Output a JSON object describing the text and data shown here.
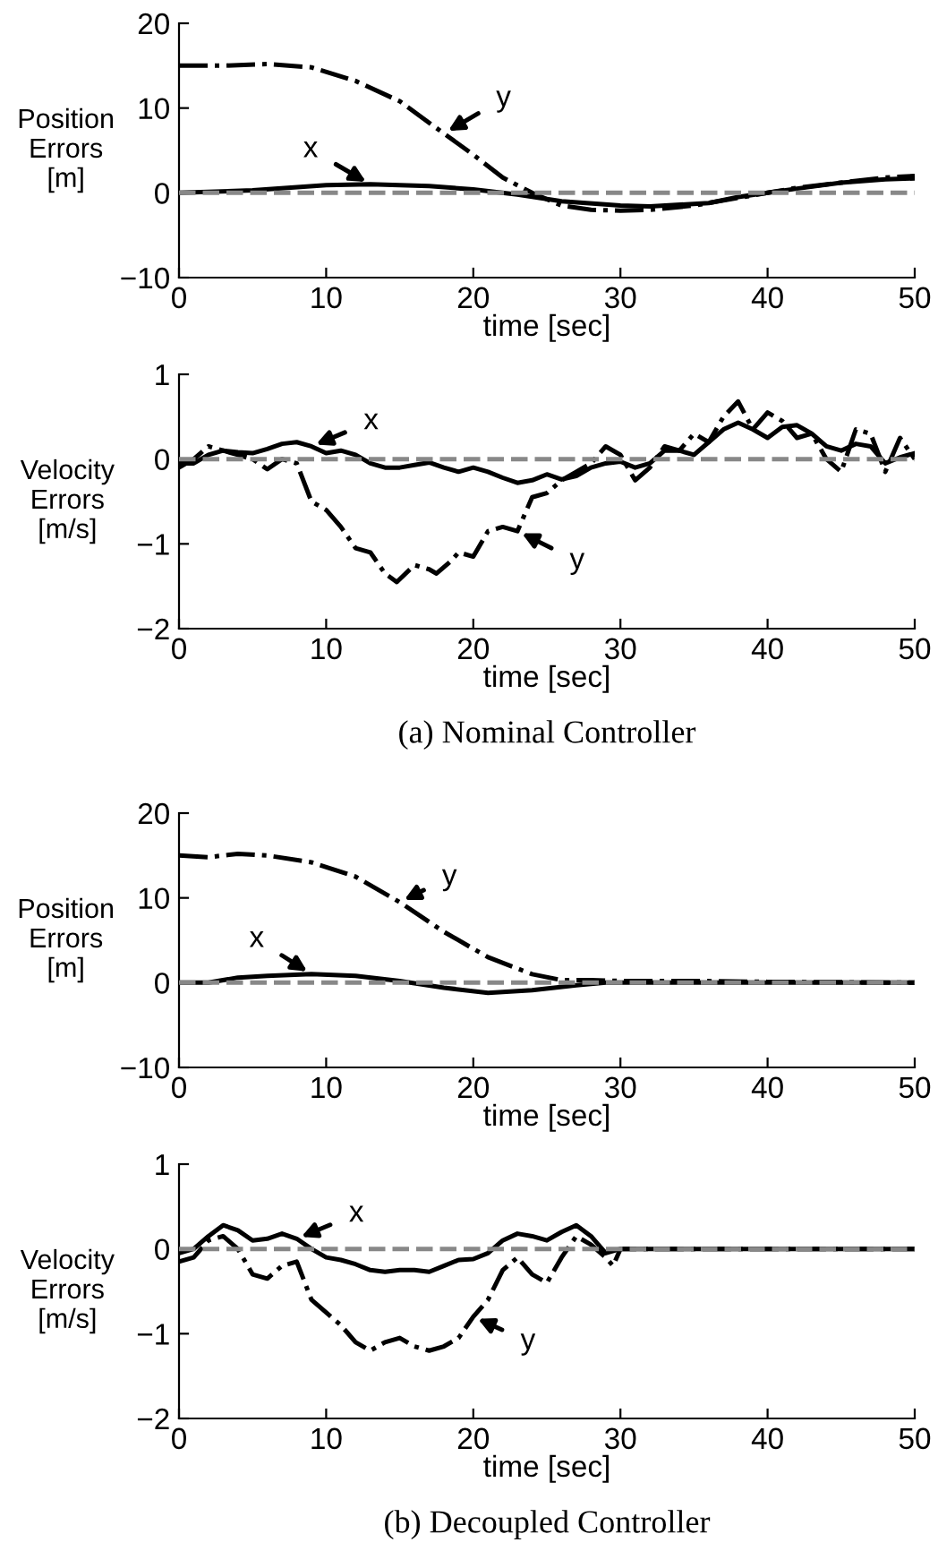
{
  "chart_data": [
    {
      "type": "line",
      "xlabel": "time [sec]",
      "ylabel": "Position\nErrors\n[m]",
      "xlim": [
        0,
        50
      ],
      "ylim": [
        -10,
        20
      ],
      "xticks": [
        0,
        10,
        20,
        30,
        40,
        50
      ],
      "yticks": [
        -10,
        0,
        10,
        20
      ],
      "series": [
        {
          "color": "#000000",
          "line_style": "solid",
          "x": [
            0,
            5,
            10,
            13,
            17,
            20,
            23,
            26,
            30,
            32,
            36,
            38,
            40,
            42,
            45,
            48,
            50
          ],
          "values": [
            0,
            0.3,
            0.9,
            1.0,
            0.8,
            0.4,
            -0.2,
            -1.0,
            -1.5,
            -1.6,
            -1.2,
            -0.5,
            0,
            0.5,
            1.2,
            1.6,
            1.7
          ]
        },
        {
          "color": "#000000",
          "line_style": "dashdot",
          "x": [
            0,
            3,
            6,
            9,
            12,
            15,
            18,
            20,
            22,
            24,
            26,
            28,
            30,
            32,
            35,
            38,
            40,
            42,
            45,
            48,
            50
          ],
          "values": [
            15,
            15,
            15.2,
            14.8,
            13.2,
            10.8,
            7,
            4.5,
            1.8,
            0,
            -1.5,
            -2.0,
            -2.1,
            -2.0,
            -1.5,
            -0.6,
            0,
            0.6,
            1.2,
            1.8,
            2.0
          ]
        }
      ],
      "ref_lines": [
        {
          "axis": "y",
          "value": 0,
          "color": "#888888",
          "line_style": "dashed"
        }
      ],
      "annotations": [
        {
          "text": "y",
          "x": 18,
          "y": 7
        },
        {
          "text": "x",
          "x": 13,
          "y": 1.0
        }
      ]
    },
    {
      "type": "line",
      "xlabel": "time [sec]",
      "ylabel": "Velocity\nErrors\n[m/s]",
      "xlim": [
        0,
        50
      ],
      "ylim": [
        -2,
        1
      ],
      "xticks": [
        0,
        10,
        20,
        30,
        40,
        50
      ],
      "yticks": [
        -2,
        -1,
        0,
        1
      ],
      "series": [
        {
          "color": "#000000",
          "line_style": "solid",
          "x": [
            0,
            1,
            2,
            3,
            4,
            5,
            6,
            7,
            8,
            9,
            10,
            11,
            12,
            13,
            14,
            15,
            16,
            17,
            18,
            19,
            20,
            21,
            22,
            23,
            24,
            25,
            26,
            27,
            28,
            29,
            30,
            31,
            32,
            33,
            34,
            35,
            36,
            37,
            38,
            39,
            40,
            41,
            42,
            43,
            44,
            45,
            46,
            47,
            48,
            49,
            50
          ],
          "values": [
            -0.05,
            -0.05,
            0.05,
            0.1,
            0.08,
            0.07,
            0.12,
            0.18,
            0.2,
            0.15,
            0.07,
            0.1,
            0.05,
            -0.05,
            -0.1,
            -0.1,
            -0.07,
            -0.04,
            -0.1,
            -0.15,
            -0.1,
            -0.15,
            -0.22,
            -0.28,
            -0.25,
            -0.18,
            -0.24,
            -0.2,
            -0.1,
            -0.05,
            -0.03,
            -0.1,
            -0.05,
            0.1,
            0.1,
            0.05,
            0.2,
            0.35,
            0.43,
            0.35,
            0.25,
            0.38,
            0.4,
            0.3,
            0.15,
            0.1,
            0.18,
            0.15,
            -0.05,
            0.02,
            0.07
          ]
        },
        {
          "color": "#000000",
          "line_style": "dashdot",
          "x": [
            0,
            1,
            2,
            3,
            4,
            5,
            6,
            7,
            8,
            9,
            10,
            11,
            12,
            13,
            14,
            14.8,
            16,
            17,
            17.5,
            18.5,
            19,
            20,
            21,
            22,
            23,
            24,
            25,
            26,
            27,
            28,
            29,
            30,
            31,
            32,
            33,
            34,
            35,
            36,
            37,
            38,
            39,
            40,
            41,
            42,
            43,
            44,
            45,
            46,
            47,
            48,
            49,
            50
          ],
          "values": [
            -0.1,
            0.0,
            0.15,
            0.1,
            0.05,
            0.0,
            -0.12,
            0.0,
            -0.05,
            -0.5,
            -0.6,
            -0.8,
            -1.05,
            -1.1,
            -1.35,
            -1.45,
            -1.25,
            -1.3,
            -1.35,
            -1.2,
            -1.1,
            -1.15,
            -0.85,
            -0.8,
            -0.85,
            -0.45,
            -0.4,
            -0.25,
            -0.15,
            -0.05,
            0.15,
            0.05,
            -0.25,
            -0.1,
            0.15,
            0.1,
            0.3,
            0.2,
            0.5,
            0.68,
            0.35,
            0.55,
            0.45,
            0.25,
            0.3,
            0.0,
            -0.15,
            0.35,
            0.3,
            -0.15,
            0.25,
            0.0
          ]
        }
      ],
      "ref_lines": [
        {
          "axis": "y",
          "value": 0,
          "color": "#888888",
          "line_style": "dashed"
        }
      ],
      "annotations": [
        {
          "text": "x",
          "x": 9,
          "y": 0.15
        },
        {
          "text": "y",
          "x": 23,
          "y": -0.85
        },
        "(a) Nominal Controller"
      ]
    },
    {
      "type": "line",
      "xlabel": "time [sec]",
      "ylabel": "Position\nErrors\n[m]",
      "xlim": [
        0,
        50
      ],
      "ylim": [
        -10,
        20
      ],
      "xticks": [
        0,
        10,
        20,
        30,
        40,
        50
      ],
      "yticks": [
        -10,
        0,
        10,
        20
      ],
      "series": [
        {
          "color": "#000000",
          "line_style": "solid",
          "x": [
            0,
            2,
            4,
            6,
            9,
            12,
            15,
            18,
            21,
            24,
            27,
            29,
            50
          ],
          "values": [
            0,
            0,
            0.6,
            0.8,
            1.0,
            0.8,
            0.2,
            -0.6,
            -1.2,
            -0.9,
            -0.3,
            0,
            0
          ]
        },
        {
          "color": "#000000",
          "line_style": "dashdot",
          "x": [
            0,
            2,
            4,
            6,
            9,
            12,
            15,
            18,
            21,
            24,
            26,
            28,
            30,
            35,
            40,
            50
          ],
          "values": [
            15,
            14.8,
            15.2,
            15.0,
            14.2,
            12.5,
            9.5,
            6,
            3.0,
            1.0,
            0.3,
            0.3,
            0.2,
            0.2,
            0.1,
            0
          ]
        }
      ],
      "ref_lines": [
        {
          "axis": "y",
          "value": 0,
          "color": "#888888",
          "line_style": "dashed"
        }
      ],
      "annotations": [
        {
          "text": "y",
          "x": 15,
          "y": 9.5
        },
        {
          "text": "x",
          "x": 9,
          "y": 1.0
        }
      ]
    },
    {
      "type": "line",
      "xlabel": "time [sec]",
      "ylabel": "Velocity\nErrors\n[m/s]",
      "xlim": [
        0,
        50
      ],
      "ylim": [
        -2,
        1
      ],
      "xticks": [
        0,
        10,
        20,
        30,
        40,
        50
      ],
      "yticks": [
        -2,
        -1,
        0,
        1
      ],
      "series": [
        {
          "color": "#000000",
          "line_style": "solid",
          "x": [
            0,
            1,
            2,
            3,
            4,
            5,
            6,
            7,
            8,
            9,
            10,
            11,
            12,
            13,
            14,
            15,
            16,
            17,
            18,
            19,
            20,
            21,
            22,
            23,
            24,
            25,
            26,
            27,
            28,
            29,
            30,
            50
          ],
          "values": [
            -0.05,
            0.0,
            0.15,
            0.28,
            0.22,
            0.1,
            0.12,
            0.18,
            0.12,
            0.0,
            -0.1,
            -0.13,
            -0.18,
            -0.25,
            -0.27,
            -0.25,
            -0.25,
            -0.27,
            -0.2,
            -0.13,
            -0.12,
            -0.05,
            0.1,
            0.18,
            0.15,
            0.1,
            0.2,
            0.28,
            0.15,
            -0.05,
            0.0,
            0
          ]
        },
        {
          "color": "#000000",
          "line_style": "dashdot",
          "x": [
            0,
            1,
            2,
            3,
            4,
            5,
            6,
            7,
            8,
            9,
            10,
            11,
            12,
            13,
            14,
            15,
            16,
            17,
            18,
            19,
            20,
            21,
            22,
            23,
            24,
            25,
            26,
            27,
            28,
            29,
            29.5,
            30,
            50
          ],
          "values": [
            -0.15,
            -0.1,
            0.1,
            0.15,
            0.0,
            -0.3,
            -0.35,
            -0.2,
            -0.15,
            -0.6,
            -0.75,
            -0.9,
            -1.1,
            -1.2,
            -1.1,
            -1.05,
            -1.15,
            -1.2,
            -1.15,
            -1.05,
            -0.8,
            -0.6,
            -0.25,
            -0.1,
            -0.3,
            -0.4,
            -0.1,
            0.15,
            0.05,
            -0.1,
            -0.2,
            0.0,
            0
          ]
        }
      ],
      "ref_lines": [
        {
          "axis": "y",
          "value": 0,
          "color": "#888888",
          "line_style": "dashed"
        }
      ],
      "annotations": [
        {
          "text": "x",
          "x": 8,
          "y": 0.12
        },
        {
          "text": "y",
          "x": 20,
          "y": -0.8
        },
        "(b) Decoupled Controller"
      ]
    }
  ]
}
